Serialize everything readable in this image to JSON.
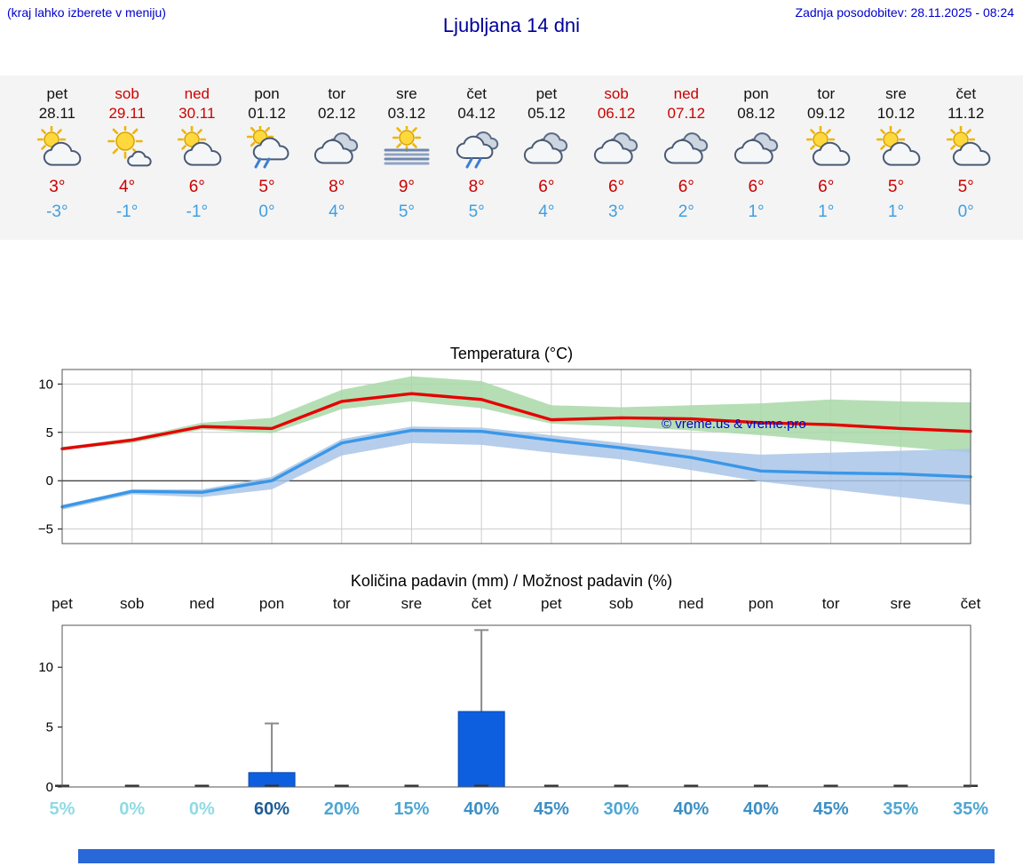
{
  "header": {
    "menu_hint": "(kraj lahko izberete v meniju)",
    "title": "Ljubljana 14 dni",
    "last_update": "Zadnja posodobitev: 28.11.2025 - 08:24"
  },
  "colors": {
    "header_blue": "#0000cc",
    "title_blue": "#000099",
    "temp_max_red": "#cc0000",
    "temp_min_blue": "#3f9fe0",
    "strip_bg": "#f4f4f4",
    "footer_blue": "#2868d8"
  },
  "forecast": {
    "days": [
      {
        "day": "pet",
        "date": "28.11",
        "icon": "partly-sunny",
        "tmax": "3°",
        "tmin": "-3°",
        "weekend": false
      },
      {
        "day": "sob",
        "date": "29.11",
        "icon": "mostly-sunny",
        "tmax": "4°",
        "tmin": "-1°",
        "weekend": true
      },
      {
        "day": "ned",
        "date": "30.11",
        "icon": "partly-sunny",
        "tmax": "6°",
        "tmin": "-1°",
        "weekend": true
      },
      {
        "day": "pon",
        "date": "01.12",
        "icon": "rain-sun",
        "tmax": "5°",
        "tmin": "0°",
        "weekend": false
      },
      {
        "day": "tor",
        "date": "02.12",
        "icon": "cloudy",
        "tmax": "8°",
        "tmin": "4°",
        "weekend": false
      },
      {
        "day": "sre",
        "date": "03.12",
        "icon": "fog",
        "tmax": "9°",
        "tmin": "5°",
        "weekend": false
      },
      {
        "day": "čet",
        "date": "04.12",
        "icon": "rain",
        "tmax": "8°",
        "tmin": "5°",
        "weekend": false
      },
      {
        "day": "pet",
        "date": "05.12",
        "icon": "cloudy",
        "tmax": "6°",
        "tmin": "4°",
        "weekend": false
      },
      {
        "day": "sob",
        "date": "06.12",
        "icon": "cloudy",
        "tmax": "6°",
        "tmin": "3°",
        "weekend": true
      },
      {
        "day": "ned",
        "date": "07.12",
        "icon": "cloudy",
        "tmax": "6°",
        "tmin": "2°",
        "weekend": true
      },
      {
        "day": "pon",
        "date": "08.12",
        "icon": "cloudy",
        "tmax": "6°",
        "tmin": "1°",
        "weekend": false
      },
      {
        "day": "tor",
        "date": "09.12",
        "icon": "partly-sunny",
        "tmax": "6°",
        "tmin": "1°",
        "weekend": false
      },
      {
        "day": "sre",
        "date": "10.12",
        "icon": "partly-sunny",
        "tmax": "5°",
        "tmin": "1°",
        "weekend": false
      },
      {
        "day": "čet",
        "date": "11.12",
        "icon": "partly-sunny",
        "tmax": "5°",
        "tmin": "0°",
        "weekend": false
      }
    ]
  },
  "chart_data": [
    {
      "type": "line",
      "title": "Temperatura (°C)",
      "watermark": "© vreme.us & vreme.pro",
      "x_labels": [
        "pet",
        "sob",
        "ned",
        "pon",
        "tor",
        "sre",
        "čet",
        "pet",
        "sob",
        "ned",
        "pon",
        "tor",
        "sre",
        "čet"
      ],
      "ylim": [
        -6.5,
        11.5
      ],
      "yticks": [
        -5,
        0,
        5,
        10
      ],
      "grid": true,
      "series": [
        {
          "name": "temperatura max",
          "color": "#e60000",
          "values": [
            3.3,
            4.2,
            5.6,
            5.4,
            8.2,
            9.0,
            8.4,
            6.3,
            6.5,
            6.4,
            6.0,
            5.8,
            5.4,
            5.1
          ]
        },
        {
          "name": "temperatura min",
          "color": "#3a97e8",
          "values": [
            -2.7,
            -1.1,
            -1.2,
            0.0,
            3.9,
            5.2,
            5.1,
            4.2,
            3.4,
            2.4,
            1.0,
            0.8,
            0.7,
            0.4
          ]
        }
      ],
      "bands": [
        {
          "name": "razpon max",
          "color": "#a8d8a8",
          "upper": [
            3.5,
            4.4,
            6.0,
            6.5,
            9.4,
            10.8,
            10.3,
            7.8,
            7.6,
            7.8,
            8.0,
            8.4,
            8.2,
            8.1
          ],
          "lower": [
            3.2,
            3.9,
            5.3,
            4.9,
            7.4,
            8.2,
            7.5,
            5.9,
            5.6,
            5.2,
            4.7,
            4.1,
            3.5,
            2.9
          ]
        },
        {
          "name": "razpon min",
          "color": "#a9c6e8",
          "upper": [
            -2.5,
            -0.9,
            -0.9,
            0.4,
            4.3,
            5.6,
            5.5,
            4.7,
            3.9,
            3.2,
            2.7,
            2.9,
            3.1,
            3.3
          ],
          "lower": [
            -3.0,
            -1.4,
            -1.7,
            -0.9,
            2.6,
            3.9,
            3.7,
            2.9,
            2.2,
            1.1,
            -0.1,
            -0.9,
            -1.7,
            -2.5
          ]
        }
      ]
    },
    {
      "type": "bar",
      "title": "Količina padavin (mm) / Možnost padavin (%)",
      "x_labels": [
        "pet",
        "sob",
        "ned",
        "pon",
        "tor",
        "sre",
        "čet",
        "pet",
        "sob",
        "ned",
        "pon",
        "tor",
        "sre",
        "čet"
      ],
      "ylim": [
        0,
        13.5
      ],
      "yticks": [
        0,
        5,
        10
      ],
      "bar_color": "#0d5fe0",
      "precipitation_mm": [
        0,
        0,
        0,
        1.2,
        0,
        0,
        6.3,
        0,
        0,
        0,
        0,
        0,
        0,
        0
      ],
      "range_max_mm": [
        0,
        0,
        0,
        5.3,
        0,
        0,
        13.1,
        0,
        0,
        0,
        0,
        0,
        0,
        0
      ],
      "probabilities": [
        {
          "label": "5%",
          "color": "#8fdbe4"
        },
        {
          "label": "0%",
          "color": "#8fdbe4"
        },
        {
          "label": "0%",
          "color": "#8fdbe4"
        },
        {
          "label": "60%",
          "color": "#1e5d94"
        },
        {
          "label": "20%",
          "color": "#4fa6d2"
        },
        {
          "label": "15%",
          "color": "#4fa6d2"
        },
        {
          "label": "40%",
          "color": "#3c8fc4"
        },
        {
          "label": "45%",
          "color": "#3c8fc4"
        },
        {
          "label": "30%",
          "color": "#4fa6d2"
        },
        {
          "label": "40%",
          "color": "#3c8fc4"
        },
        {
          "label": "40%",
          "color": "#3c8fc4"
        },
        {
          "label": "45%",
          "color": "#3c8fc4"
        },
        {
          "label": "35%",
          "color": "#4fa6d2"
        },
        {
          "label": "35%",
          "color": "#4fa6d2"
        }
      ]
    }
  ]
}
